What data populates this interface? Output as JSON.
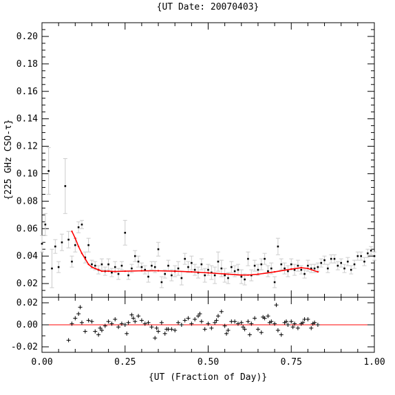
{
  "chart_data": [
    {
      "type": "scatter",
      "title": "{UT Date: 20070403}",
      "xlabel": "",
      "ylabel": "{225 GHz CSO-τ}",
      "xlim": [
        0.0,
        1.0
      ],
      "ylim": [
        0.01,
        0.21
      ],
      "yticks": [
        0.02,
        0.04,
        0.06,
        0.08,
        0.1,
        0.12,
        0.14,
        0.16,
        0.18,
        0.2
      ],
      "ytick_labels": [
        "0.02",
        "0.04",
        "0.06",
        "0.08",
        "0.10",
        "0.12",
        "0.14",
        "0.16",
        "0.18",
        "0.20"
      ],
      "grid": false,
      "series": [
        {
          "kind": "points_with_errorbars",
          "color": "#000000",
          "error_color": "#cccccc",
          "points": [
            [
              0.0,
              0.049,
              0.006
            ],
            [
              0.01,
              0.063,
              0.008
            ],
            [
              0.02,
              0.102,
              0.017
            ],
            [
              0.03,
              0.031,
              0.014
            ],
            [
              0.04,
              0.047,
              0.005
            ],
            [
              0.05,
              0.032,
              0.004
            ],
            [
              0.06,
              0.05,
              0.006
            ],
            [
              0.07,
              0.091,
              0.02
            ],
            [
              0.08,
              0.052,
              0.006
            ],
            [
              0.09,
              0.036,
              0.004
            ],
            [
              0.1,
              0.048,
              0.005
            ],
            [
              0.11,
              0.061,
              0.004
            ],
            [
              0.12,
              0.063,
              0.003
            ],
            [
              0.13,
              0.039,
              0.004
            ],
            [
              0.14,
              0.048,
              0.005
            ],
            [
              0.15,
              0.034,
              0.003
            ],
            [
              0.16,
              0.033,
              0.003
            ],
            [
              0.17,
              0.03,
              0.003
            ],
            [
              0.18,
              0.034,
              0.004
            ],
            [
              0.19,
              0.029,
              0.003
            ],
            [
              0.2,
              0.034,
              0.004
            ],
            [
              0.21,
              0.028,
              0.003
            ],
            [
              0.22,
              0.032,
              0.004
            ],
            [
              0.23,
              0.027,
              0.004
            ],
            [
              0.24,
              0.033,
              0.003
            ],
            [
              0.25,
              0.057,
              0.009
            ],
            [
              0.26,
              0.026,
              0.003
            ],
            [
              0.27,
              0.031,
              0.003
            ],
            [
              0.28,
              0.04,
              0.004
            ],
            [
              0.29,
              0.036,
              0.004
            ],
            [
              0.3,
              0.032,
              0.003
            ],
            [
              0.31,
              0.03,
              0.003
            ],
            [
              0.32,
              0.025,
              0.004
            ],
            [
              0.33,
              0.033,
              0.003
            ],
            [
              0.34,
              0.032,
              0.004
            ],
            [
              0.35,
              0.045,
              0.005
            ],
            [
              0.36,
              0.021,
              0.004
            ],
            [
              0.37,
              0.027,
              0.003
            ],
            [
              0.38,
              0.033,
              0.004
            ],
            [
              0.39,
              0.026,
              0.004
            ],
            [
              0.4,
              0.029,
              0.004
            ],
            [
              0.41,
              0.031,
              0.005
            ],
            [
              0.42,
              0.024,
              0.005
            ],
            [
              0.43,
              0.038,
              0.004
            ],
            [
              0.44,
              0.032,
              0.004
            ],
            [
              0.45,
              0.035,
              0.005
            ],
            [
              0.46,
              0.03,
              0.004
            ],
            [
              0.47,
              0.028,
              0.004
            ],
            [
              0.48,
              0.034,
              0.004
            ],
            [
              0.49,
              0.026,
              0.005
            ],
            [
              0.5,
              0.03,
              0.004
            ],
            [
              0.51,
              0.028,
              0.005
            ],
            [
              0.52,
              0.026,
              0.006
            ],
            [
              0.53,
              0.036,
              0.007
            ],
            [
              0.54,
              0.031,
              0.006
            ],
            [
              0.55,
              0.026,
              0.005
            ],
            [
              0.56,
              0.024,
              0.004
            ],
            [
              0.57,
              0.032,
              0.004
            ],
            [
              0.58,
              0.029,
              0.004
            ],
            [
              0.59,
              0.03,
              0.004
            ],
            [
              0.6,
              0.025,
              0.005
            ],
            [
              0.61,
              0.023,
              0.004
            ],
            [
              0.62,
              0.038,
              0.005
            ],
            [
              0.63,
              0.026,
              0.004
            ],
            [
              0.64,
              0.033,
              0.004
            ],
            [
              0.65,
              0.03,
              0.004
            ],
            [
              0.66,
              0.034,
              0.004
            ],
            [
              0.67,
              0.038,
              0.004
            ],
            [
              0.68,
              0.029,
              0.004
            ],
            [
              0.69,
              0.031,
              0.004
            ],
            [
              0.7,
              0.021,
              0.004
            ],
            [
              0.71,
              0.047,
              0.006
            ],
            [
              0.72,
              0.034,
              0.004
            ],
            [
              0.73,
              0.031,
              0.004
            ],
            [
              0.74,
              0.029,
              0.004
            ],
            [
              0.75,
              0.034,
              0.004
            ],
            [
              0.76,
              0.03,
              0.004
            ],
            [
              0.77,
              0.033,
              0.004
            ],
            [
              0.78,
              0.03,
              0.003
            ],
            [
              0.79,
              0.027,
              0.003
            ],
            [
              0.8,
              0.033,
              0.004
            ],
            [
              0.81,
              0.031,
              0.003
            ],
            [
              0.82,
              0.031,
              0.003
            ],
            [
              0.83,
              0.032,
              0.003
            ],
            [
              0.84,
              0.035,
              0.003
            ],
            [
              0.85,
              0.037,
              0.003
            ],
            [
              0.86,
              0.031,
              0.003
            ],
            [
              0.87,
              0.038,
              0.003
            ],
            [
              0.88,
              0.038,
              0.003
            ],
            [
              0.89,
              0.033,
              0.003
            ],
            [
              0.9,
              0.035,
              0.003
            ],
            [
              0.91,
              0.031,
              0.003
            ],
            [
              0.92,
              0.036,
              0.003
            ],
            [
              0.93,
              0.03,
              0.003
            ],
            [
              0.94,
              0.034,
              0.003
            ],
            [
              0.95,
              0.04,
              0.003
            ],
            [
              0.96,
              0.04,
              0.003
            ],
            [
              0.97,
              0.036,
              0.003
            ],
            [
              0.98,
              0.042,
              0.003
            ],
            [
              0.99,
              0.044,
              0.003
            ],
            [
              1.0,
              0.04,
              0.003
            ]
          ]
        },
        {
          "kind": "fit_curve",
          "color": "#ff0000",
          "points": [
            [
              0.09,
              0.058
            ],
            [
              0.1,
              0.053
            ],
            [
              0.11,
              0.047
            ],
            [
              0.12,
              0.042
            ],
            [
              0.13,
              0.038
            ],
            [
              0.14,
              0.034
            ],
            [
              0.15,
              0.032
            ],
            [
              0.16,
              0.031
            ],
            [
              0.17,
              0.03
            ],
            [
              0.18,
              0.029
            ],
            [
              0.2,
              0.029
            ],
            [
              0.22,
              0.0288
            ],
            [
              0.25,
              0.029
            ],
            [
              0.3,
              0.0293
            ],
            [
              0.35,
              0.0293
            ],
            [
              0.4,
              0.029
            ],
            [
              0.45,
              0.0285
            ],
            [
              0.5,
              0.0278
            ],
            [
              0.55,
              0.027
            ],
            [
              0.6,
              0.0262
            ],
            [
              0.62,
              0.0262
            ],
            [
              0.65,
              0.0268
            ],
            [
              0.7,
              0.0285
            ],
            [
              0.75,
              0.0305
            ],
            [
              0.78,
              0.0315
            ],
            [
              0.8,
              0.031
            ],
            [
              0.83,
              0.0285
            ]
          ]
        }
      ]
    },
    {
      "type": "scatter",
      "title": "",
      "xlabel": "{UT (Fraction of Day)}",
      "ylabel": "",
      "xlim": [
        0.0,
        1.0
      ],
      "ylim": [
        -0.025,
        0.025
      ],
      "xticks": [
        0.0,
        0.25,
        0.5,
        0.75,
        1.0
      ],
      "xtick_labels": [
        "0.00",
        "0.25",
        "0.50",
        "0.75",
        "1.00"
      ],
      "yticks": [
        -0.02,
        0.0,
        0.02
      ],
      "ytick_labels": [
        "-0.02",
        "0.00",
        "0.02"
      ],
      "zero_line_color": "#ff0000",
      "series": [
        {
          "kind": "residuals",
          "marker": "plus",
          "color": "#000000",
          "points": [
            [
              0.08,
              -0.014
            ],
            [
              0.09,
              0.001
            ],
            [
              0.1,
              0.006
            ],
            [
              0.11,
              0.01
            ],
            [
              0.115,
              0.016
            ],
            [
              0.12,
              0.002
            ],
            [
              0.13,
              -0.006
            ],
            [
              0.14,
              0.004
            ],
            [
              0.15,
              0.003
            ],
            [
              0.16,
              -0.006
            ],
            [
              0.17,
              -0.009
            ],
            [
              0.175,
              -0.003
            ],
            [
              0.18,
              -0.005
            ],
            [
              0.19,
              -0.001
            ],
            [
              0.2,
              0.003
            ],
            [
              0.21,
              0.001
            ],
            [
              0.22,
              0.005
            ],
            [
              0.23,
              -0.002
            ],
            [
              0.24,
              0.001
            ],
            [
              0.25,
              0.0
            ],
            [
              0.255,
              -0.008
            ],
            [
              0.26,
              0.002
            ],
            [
              0.27,
              0.009
            ],
            [
              0.275,
              0.006
            ],
            [
              0.28,
              0.003
            ],
            [
              0.29,
              0.008
            ],
            [
              0.3,
              0.004
            ],
            [
              0.31,
              0.001
            ],
            [
              0.32,
              0.002
            ],
            [
              0.33,
              -0.002
            ],
            [
              0.34,
              -0.012
            ],
            [
              0.345,
              -0.003
            ],
            [
              0.35,
              -0.006
            ],
            [
              0.36,
              0.002
            ],
            [
              0.37,
              -0.008
            ],
            [
              0.375,
              -0.004
            ],
            [
              0.38,
              -0.004
            ],
            [
              0.39,
              -0.004
            ],
            [
              0.4,
              -0.005
            ],
            [
              0.41,
              0.002
            ],
            [
              0.42,
              0.0
            ],
            [
              0.43,
              0.004
            ],
            [
              0.44,
              0.006
            ],
            [
              0.45,
              0.001
            ],
            [
              0.46,
              0.005
            ],
            [
              0.47,
              0.008
            ],
            [
              0.475,
              0.01
            ],
            [
              0.48,
              0.003
            ],
            [
              0.49,
              -0.004
            ],
            [
              0.5,
              0.001
            ],
            [
              0.51,
              -0.003
            ],
            [
              0.52,
              0.002
            ],
            [
              0.525,
              0.004
            ],
            [
              0.53,
              0.008
            ],
            [
              0.54,
              0.012
            ],
            [
              0.55,
              -0.001
            ],
            [
              0.555,
              -0.008
            ],
            [
              0.56,
              -0.005
            ],
            [
              0.57,
              0.003
            ],
            [
              0.58,
              0.003
            ],
            [
              0.59,
              0.001
            ],
            [
              0.6,
              0.002
            ],
            [
              0.605,
              -0.002
            ],
            [
              0.61,
              -0.004
            ],
            [
              0.62,
              0.003
            ],
            [
              0.625,
              -0.009
            ],
            [
              0.63,
              0.001
            ],
            [
              0.64,
              0.006
            ],
            [
              0.65,
              -0.004
            ],
            [
              0.66,
              -0.007
            ],
            [
              0.665,
              0.007
            ],
            [
              0.67,
              0.006
            ],
            [
              0.68,
              0.008
            ],
            [
              0.685,
              0.002
            ],
            [
              0.69,
              0.003
            ],
            [
              0.7,
              0.001
            ],
            [
              0.705,
              0.018
            ],
            [
              0.71,
              -0.005
            ],
            [
              0.72,
              -0.009
            ],
            [
              0.73,
              0.002
            ],
            [
              0.735,
              0.003
            ],
            [
              0.74,
              0.0
            ],
            [
              0.75,
              0.003
            ],
            [
              0.755,
              -0.002
            ],
            [
              0.76,
              0.001
            ],
            [
              0.77,
              -0.003
            ],
            [
              0.78,
              0.001
            ],
            [
              0.785,
              0.002
            ],
            [
              0.79,
              0.005
            ],
            [
              0.8,
              0.005
            ],
            [
              0.81,
              -0.003
            ],
            [
              0.815,
              0.001
            ],
            [
              0.82,
              0.002
            ],
            [
              0.83,
              0.0
            ]
          ]
        }
      ]
    }
  ]
}
